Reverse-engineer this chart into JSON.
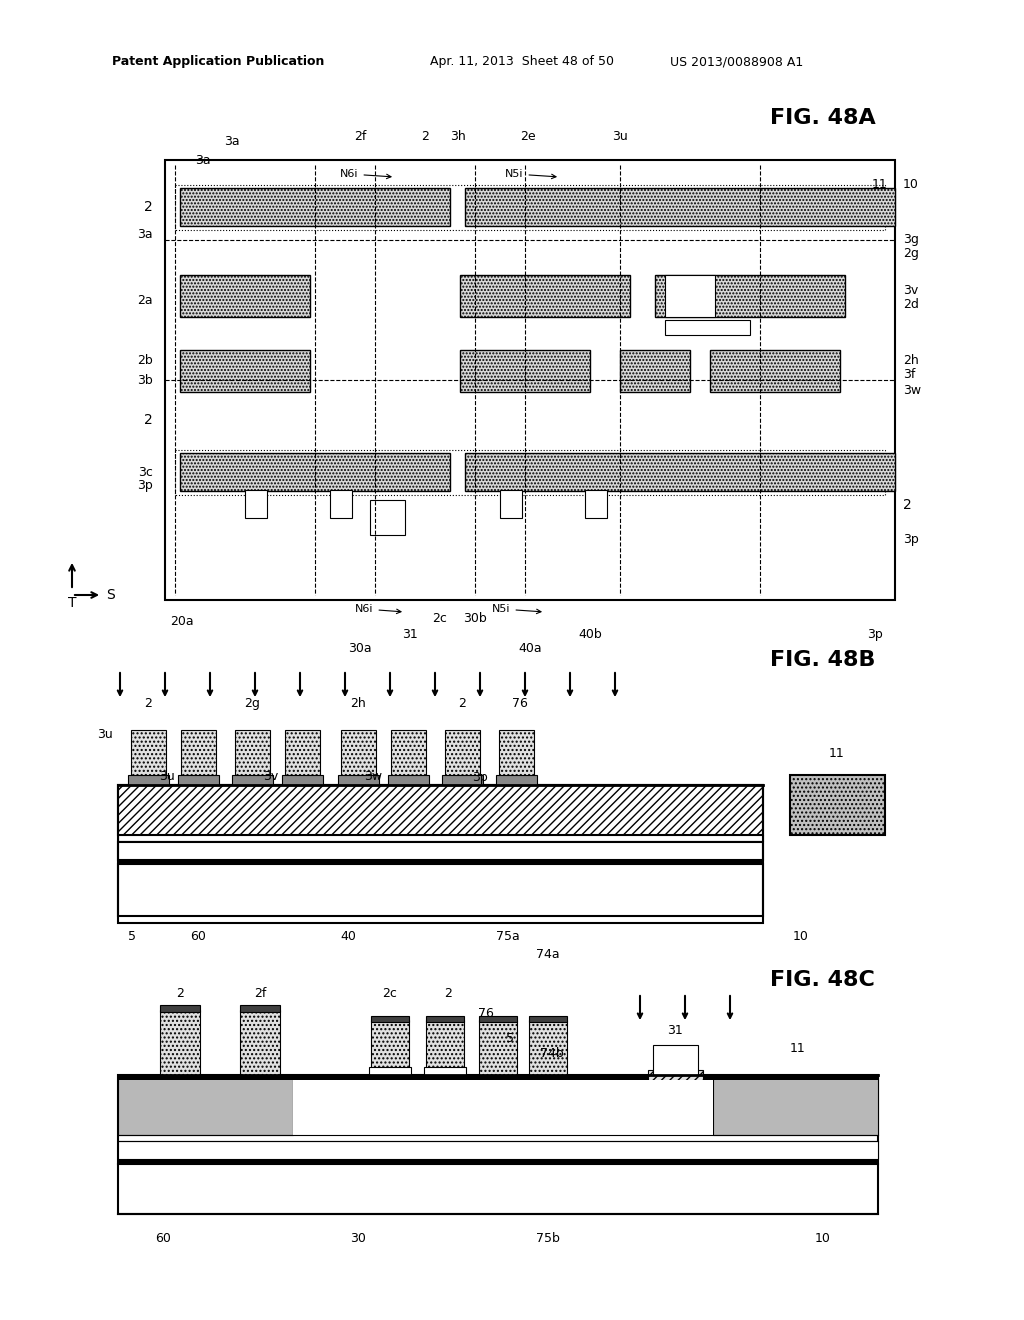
{
  "page_header_left": "Patent Application Publication",
  "page_header_mid": "Apr. 11, 2013  Sheet 48 of 50",
  "page_header_right": "US 2013/0088908 A1",
  "bg_color": "#ffffff",
  "line_color": "#000000"
}
